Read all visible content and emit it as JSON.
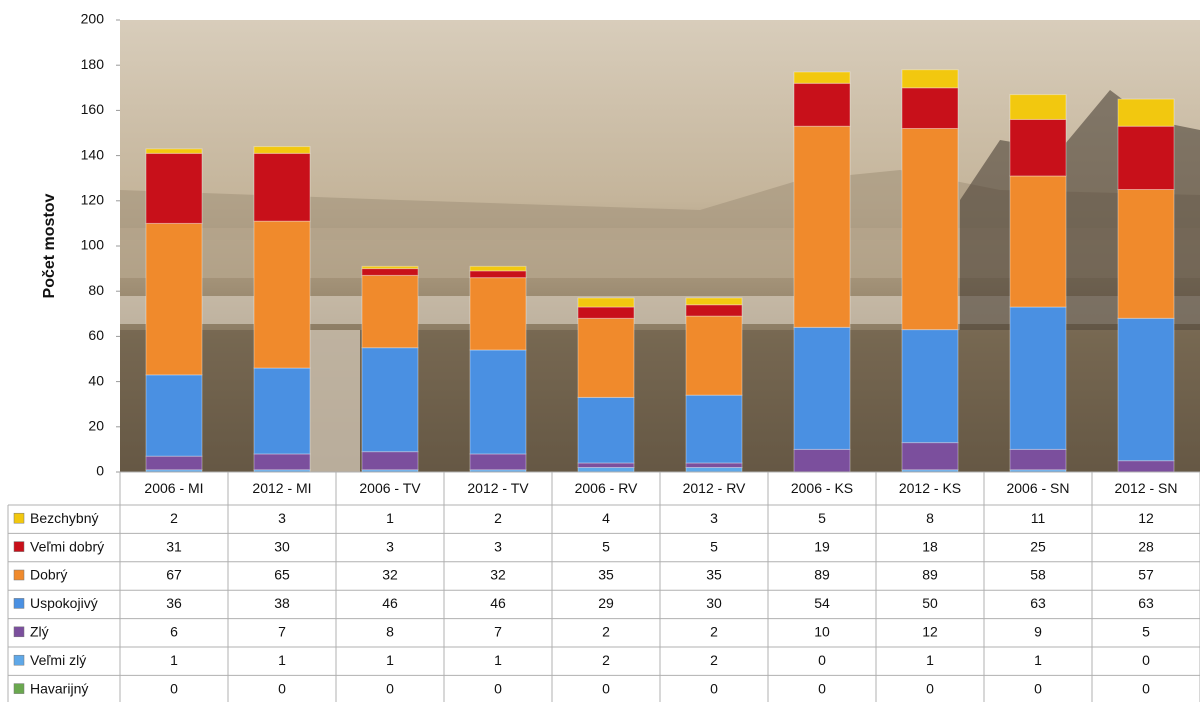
{
  "chart_data": {
    "type": "stacked-bar",
    "y_label": "Počet mostov",
    "categories": [
      "2006 - MI",
      "2012 - MI",
      "2006 - TV",
      "2012 - TV",
      "2006 - RV",
      "2012 - RV",
      "2006 - KS",
      "2012 - KS",
      "2006 - SN",
      "2012 - SN"
    ],
    "series": [
      {
        "name": "Bezchybný",
        "color": "#f2c80f",
        "values": [
          2,
          3,
          1,
          2,
          4,
          3,
          5,
          8,
          11,
          12
        ]
      },
      {
        "name": "Veľmi dobrý",
        "color": "#c8101a",
        "values": [
          31,
          30,
          3,
          3,
          5,
          5,
          19,
          18,
          25,
          28
        ]
      },
      {
        "name": "Dobrý",
        "color": "#f08a2c",
        "values": [
          67,
          65,
          32,
          32,
          35,
          35,
          89,
          89,
          58,
          57
        ]
      },
      {
        "name": "Uspokojivý",
        "color": "#4a90e2",
        "values": [
          36,
          38,
          46,
          46,
          29,
          30,
          54,
          50,
          63,
          63
        ]
      },
      {
        "name": "Zlý",
        "color": "#7b4f9d",
        "values": [
          6,
          7,
          8,
          7,
          2,
          2,
          10,
          12,
          9,
          5
        ]
      },
      {
        "name": "Veľmi zlý",
        "color": "#5fa8e8",
        "values": [
          1,
          1,
          1,
          1,
          2,
          2,
          0,
          1,
          1,
          0
        ]
      },
      {
        "name": "Havarijný",
        "color": "#6aa84f",
        "values": [
          0,
          0,
          0,
          0,
          0,
          0,
          0,
          0,
          0,
          0
        ]
      }
    ],
    "ylim": [
      0,
      200
    ],
    "yticks": [
      0,
      20,
      40,
      60,
      80,
      100,
      120,
      140,
      160,
      180,
      200
    ]
  }
}
